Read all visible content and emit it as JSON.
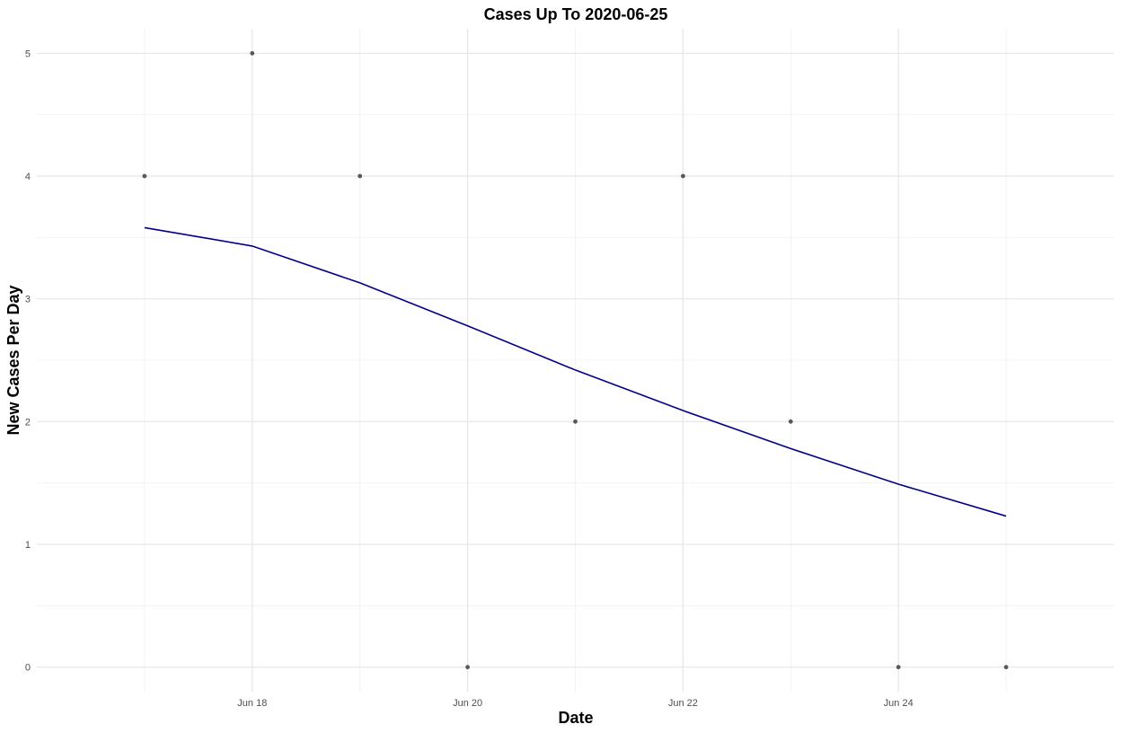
{
  "chart_data": {
    "type": "scatter",
    "title": "Cases Up To 2020-06-25",
    "xlabel": "Date",
    "ylabel": "New Cases Per Day",
    "x_type": "date",
    "xlim": [
      "2020-06-16",
      "2020-06-26"
    ],
    "ylim": [
      -0.2,
      5.2
    ],
    "x_ticks": [
      {
        "date": "2020-06-18",
        "label": "Jun 18"
      },
      {
        "date": "2020-06-20",
        "label": "Jun 20"
      },
      {
        "date": "2020-06-22",
        "label": "Jun 22"
      },
      {
        "date": "2020-06-24",
        "label": "Jun 24"
      }
    ],
    "y_ticks": [
      0,
      1,
      2,
      3,
      4,
      5
    ],
    "grid": true,
    "series": [
      {
        "kind": "points",
        "color": "#595959",
        "x": [
          "2020-06-17",
          "2020-06-18",
          "2020-06-19",
          "2020-06-20",
          "2020-06-21",
          "2020-06-22",
          "2020-06-23",
          "2020-06-24",
          "2020-06-25"
        ],
        "y": [
          4,
          5,
          4,
          0,
          2,
          4,
          2,
          0,
          0
        ]
      },
      {
        "kind": "line",
        "color": "#00008b",
        "x": [
          "2020-06-17",
          "2020-06-18",
          "2020-06-19",
          "2020-06-20",
          "2020-06-21",
          "2020-06-22",
          "2020-06-23",
          "2020-06-24",
          "2020-06-25"
        ],
        "y": [
          3.58,
          3.43,
          3.13,
          2.78,
          2.42,
          2.09,
          1.78,
          1.49,
          1.23
        ]
      }
    ]
  }
}
